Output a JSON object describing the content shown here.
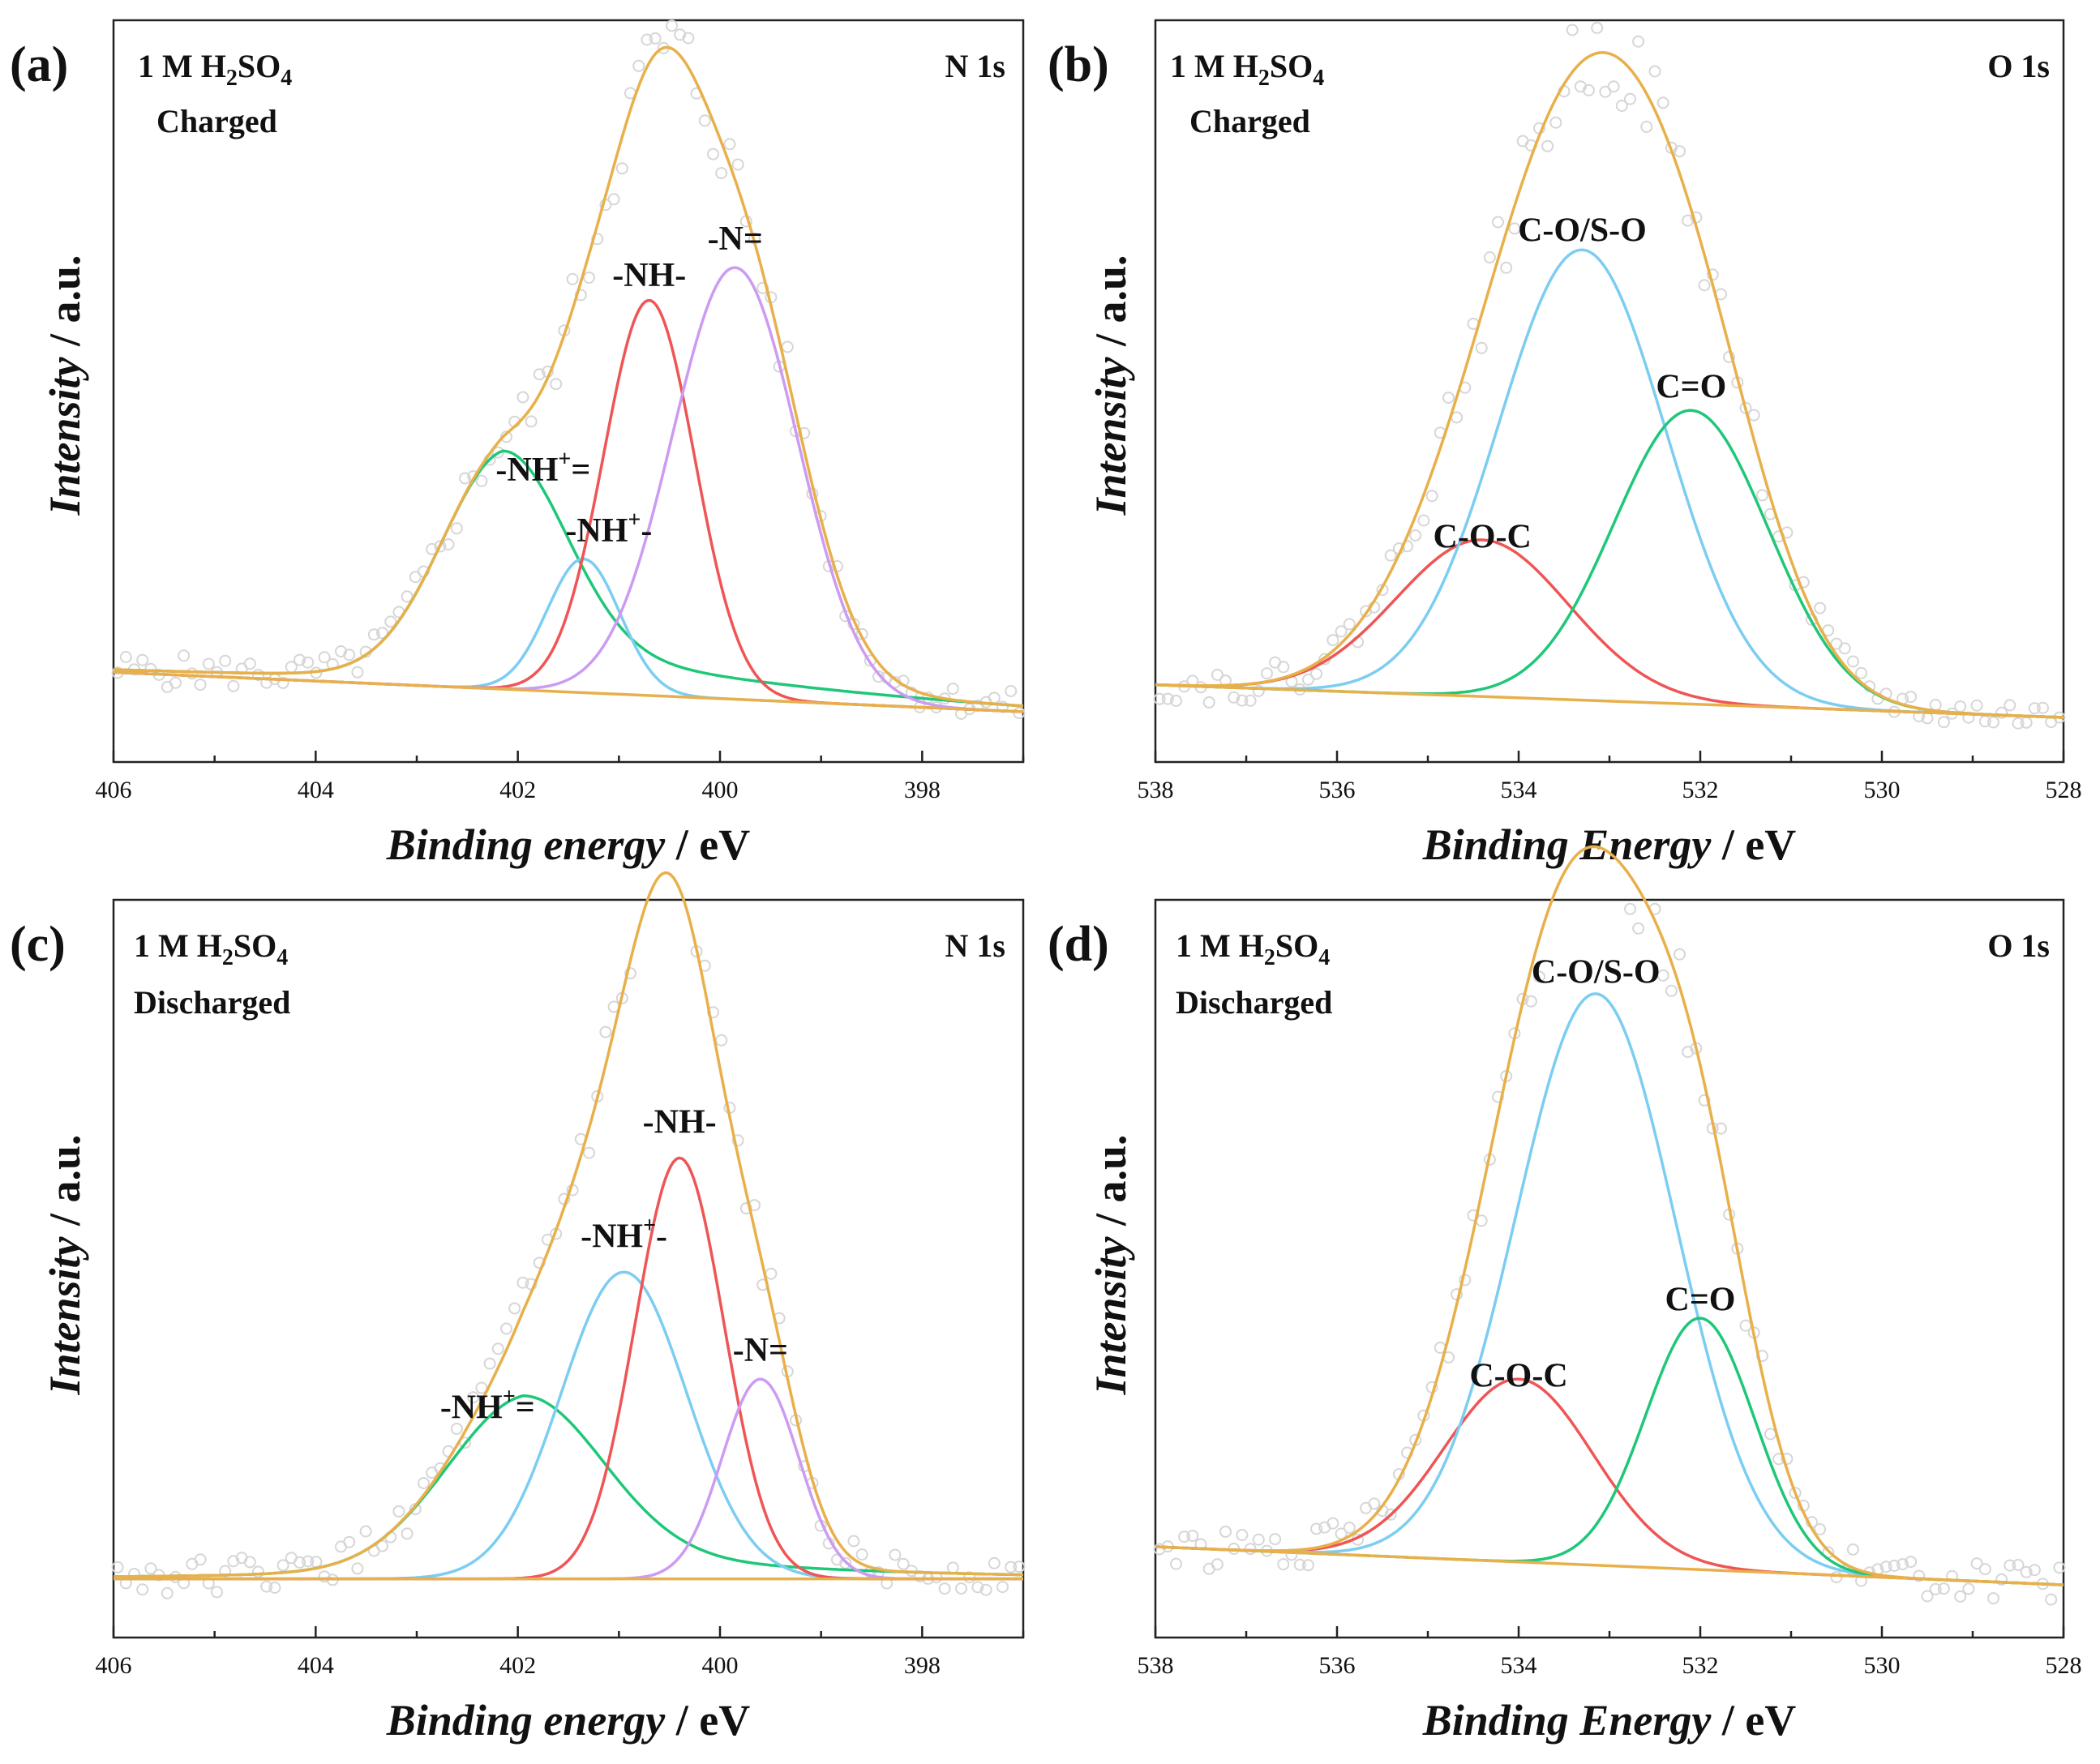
{
  "colors": {
    "envelope": "#e8b04b",
    "background": "#e8b04b",
    "green": "#1fc779",
    "red": "#ef5555",
    "blue": "#7ccdf2",
    "purple": "#cc9bf2",
    "raw_points": "#d6d6d6"
  },
  "chart_data": [
    {
      "type": "line",
      "panel": "(a)",
      "electrolyte": "1 M H2SO4",
      "electrolyte_main": "1 M H",
      "electrolyte_sub1": "2",
      "electrolyte_mid": "SO",
      "electrolyte_sub2": "4",
      "state": "Charged",
      "core_level": "N 1s",
      "xlabel_italic": "Binding energy",
      "xlabel_unit": " / eV",
      "ylabel_italic": "Intensity",
      "ylabel_unit": " / a.u.",
      "xlim": [
        406,
        397
      ],
      "ylim": [
        0,
        100
      ],
      "xticks": [
        406,
        404,
        402,
        400,
        398
      ],
      "minor_step": 1,
      "background_line": {
        "start": 6.5,
        "end": 0
      },
      "peaks": [
        {
          "label": "-NH+=",
          "label_main": "-NH",
          "label_sup": "+",
          "label_tail": "=",
          "color_key": "green",
          "center": 402.15,
          "height": 33,
          "width": 0.62,
          "tail_left": 0.22,
          "tail_right": 0.85,
          "label_x": 401.75,
          "label_y": 38
        },
        {
          "label": "-NH+-",
          "label_main": "-NH",
          "label_sup": "+",
          "label_tail": "-",
          "color_key": "blue",
          "center": 401.35,
          "height": 22,
          "width": 0.36,
          "tail_left": 0,
          "tail_right": 0,
          "label_x": 401.1,
          "label_y": 28
        },
        {
          "label": "-NH-",
          "label_main": "-NH-",
          "label_sup": "",
          "label_tail": "",
          "color_key": "red",
          "center": 400.7,
          "height": 65,
          "width": 0.45,
          "tail_left": 0,
          "tail_right": 0,
          "label_x": 400.7,
          "label_y": 70
        },
        {
          "label": "-N=",
          "label_main": "-N=",
          "label_sup": "",
          "label_tail": "",
          "color_key": "purple",
          "center": 399.85,
          "height": 71,
          "width": 0.62,
          "tail_left": 0,
          "tail_right": 0,
          "label_x": 399.85,
          "label_y": 76
        }
      ]
    },
    {
      "type": "line",
      "panel": "(b)",
      "electrolyte": "1 M H2SO4",
      "electrolyte_main": "1 M H",
      "electrolyte_sub1": "2",
      "electrolyte_mid": "SO",
      "electrolyte_sub2": "4",
      "state": "Charged",
      "core_level": "O 1s",
      "xlabel_italic": "Binding Energy",
      "xlabel_unit": " / eV",
      "ylabel_italic": "Intensity",
      "ylabel_unit": " / a.u.",
      "xlim": [
        538,
        528
      ],
      "ylim": [
        0,
        100
      ],
      "xticks": [
        538,
        536,
        534,
        532,
        530,
        528
      ],
      "minor_step": 1,
      "background_line": {
        "start": 5,
        "end": 0
      },
      "peaks": [
        {
          "label": "C-O-C",
          "label_main": "C-O-C",
          "label_sup": "",
          "label_tail": "",
          "color_key": "red",
          "center": 534.4,
          "height": 24,
          "width": 0.95,
          "tail_left": 0,
          "tail_right": 0,
          "label_x": 534.4,
          "label_y": 26
        },
        {
          "label": "C-O/S-O",
          "label_main": "C-O/S-O",
          "label_sup": "",
          "label_tail": "",
          "color_key": "blue",
          "center": 533.3,
          "height": 69,
          "width": 0.92,
          "tail_left": 0,
          "tail_right": 0,
          "label_x": 533.3,
          "label_y": 73
        },
        {
          "label": "C=O",
          "label_main": "C=O",
          "label_sup": "",
          "label_tail": "",
          "color_key": "green",
          "center": 532.1,
          "height": 45,
          "width": 0.85,
          "tail_left": 0,
          "tail_right": 0,
          "label_x": 532.1,
          "label_y": 49
        }
      ]
    },
    {
      "type": "line",
      "panel": "(c)",
      "electrolyte": "1 M H2SO4",
      "electrolyte_main": "1 M H",
      "electrolyte_sub1": "2",
      "electrolyte_mid": "SO",
      "electrolyte_sub2": "4",
      "state": "Discharged",
      "core_level": "N 1s",
      "xlabel_italic": "Binding energy",
      "xlabel_unit": " / eV",
      "ylabel_italic": "Intensity",
      "ylabel_unit": " / a.u.",
      "xlim": [
        406,
        397
      ],
      "ylim": [
        0,
        100
      ],
      "xticks": [
        406,
        404,
        402,
        400,
        398
      ],
      "minor_step": 1,
      "background_line": {
        "start": 0.5,
        "end": 0.5
      },
      "peaks": [
        {
          "label": "-NH+=",
          "label_main": "-NH",
          "label_sup": "+",
          "label_tail": "=",
          "color_key": "green",
          "center": 401.95,
          "height": 22,
          "width": 0.78,
          "tail_left": 0.25,
          "tail_right": 0.7,
          "label_x": 402.3,
          "label_y": 23
        },
        {
          "label": "-NH+-",
          "label_main": "-NH",
          "label_sup": "+",
          "label_tail": "-",
          "color_key": "blue",
          "center": 400.95,
          "height": 43,
          "width": 0.62,
          "tail_left": 0,
          "tail_right": 0,
          "label_x": 400.95,
          "label_y": 47
        },
        {
          "label": "-NH-",
          "label_main": "-NH-",
          "label_sup": "",
          "label_tail": "",
          "color_key": "red",
          "center": 400.4,
          "height": 59,
          "width": 0.44,
          "tail_left": 0,
          "tail_right": 0,
          "label_x": 400.4,
          "label_y": 63
        },
        {
          "label": "-N=",
          "label_main": "-N=",
          "label_sup": "",
          "label_tail": "",
          "color_key": "purple",
          "center": 399.6,
          "height": 28,
          "width": 0.38,
          "tail_left": 0,
          "tail_right": 0,
          "label_x": 399.6,
          "label_y": 31
        }
      ]
    },
    {
      "type": "line",
      "panel": "(d)",
      "electrolyte": "1 M H2SO4",
      "electrolyte_main": "1 M H",
      "electrolyte_sub1": "2",
      "electrolyte_mid": "SO",
      "electrolyte_sub2": "4",
      "state": "Discharged",
      "core_level": "O 1s",
      "xlabel_italic": "Binding Energy",
      "xlabel_unit": " / eV",
      "ylabel_italic": "Intensity",
      "ylabel_unit": " / a.u.",
      "xlim": [
        538,
        528
      ],
      "ylim": [
        0,
        100
      ],
      "xticks": [
        538,
        536,
        534,
        532,
        530,
        528
      ],
      "minor_step": 1,
      "background_line": {
        "start": 5,
        "end": 0
      },
      "peaks": [
        {
          "label": "C-O-C",
          "label_main": "C-O-C",
          "label_sup": "",
          "label_tail": "",
          "color_key": "red",
          "center": 534.0,
          "height": 24,
          "width": 0.82,
          "tail_left": 0,
          "tail_right": 0,
          "label_x": 534.0,
          "label_y": 26
        },
        {
          "label": "C-O/S-O",
          "label_main": "C-O/S-O",
          "label_sup": "",
          "label_tail": "",
          "color_key": "blue",
          "center": 533.15,
          "height": 75,
          "width": 0.88,
          "tail_left": 0,
          "tail_right": 0,
          "label_x": 533.15,
          "label_y": 79
        },
        {
          "label": "C=O",
          "label_main": "C=O",
          "label_sup": "",
          "label_tail": "",
          "color_key": "green",
          "center": 532.0,
          "height": 33,
          "width": 0.6,
          "tail_left": 0,
          "tail_right": 0,
          "label_x": 532.0,
          "label_y": 36
        }
      ]
    }
  ]
}
